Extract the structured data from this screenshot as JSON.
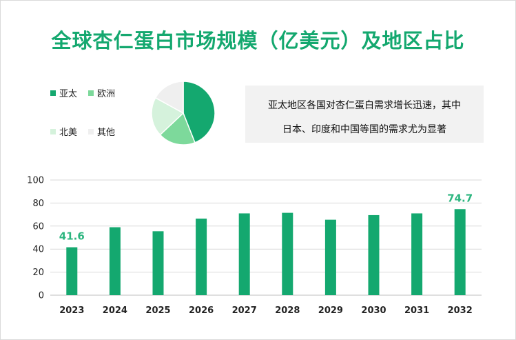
{
  "title": "全球杏仁蛋白市场规模（亿美元）及地区占比",
  "legend": [
    {
      "label": "亚太",
      "color": "#14a86f"
    },
    {
      "label": "欧洲",
      "color": "#7dd99b"
    },
    {
      "label": "北美",
      "color": "#d5f2dc"
    },
    {
      "label": "其他",
      "color": "#efefef"
    }
  ],
  "note": {
    "line1": "亚太地区各国对杏仁蛋白需求增长迅速，其中",
    "line2": "日本、印度和中国等国的需求尤为显著"
  },
  "pie_data": {
    "type": "pie",
    "slices": [
      {
        "label": "亚太",
        "value": 44
      },
      {
        "label": "欧洲",
        "value": 19
      },
      {
        "label": "北美",
        "value": 20
      },
      {
        "label": "其他",
        "value": 17
      }
    ]
  },
  "chart_data": {
    "type": "bar",
    "categories": [
      "2023",
      "2024",
      "2025",
      "2026",
      "2027",
      "2028",
      "2029",
      "2030",
      "2031",
      "2032"
    ],
    "values": [
      41.6,
      59,
      55.5,
      66.5,
      71,
      71.5,
      65.5,
      69.5,
      71,
      74.7
    ],
    "data_labels": {
      "0": "41.6",
      "9": "74.7"
    },
    "ylim": [
      0,
      100
    ],
    "yticks": [
      0,
      20,
      40,
      60,
      80,
      100
    ],
    "bar_color": "#14a86f",
    "label_color": "#2cb57f",
    "grid": true
  }
}
